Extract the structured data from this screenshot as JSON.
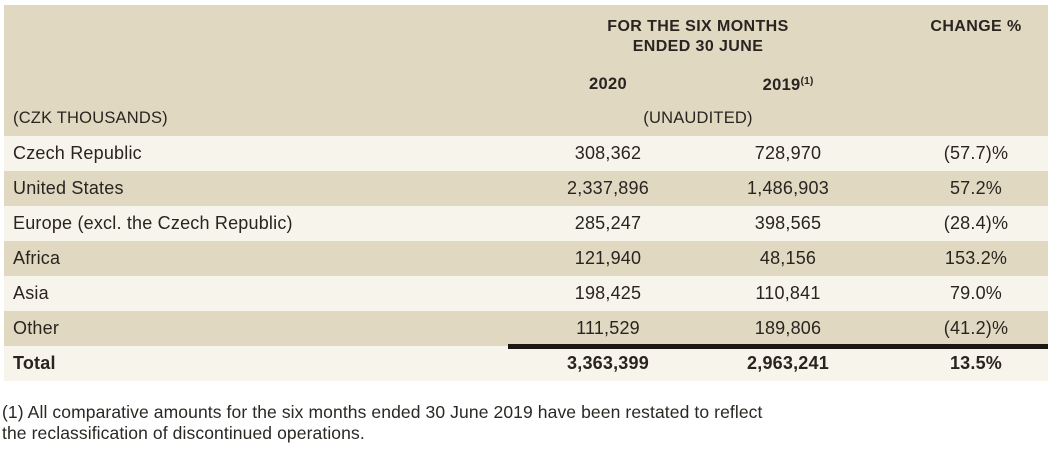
{
  "colors": {
    "band_tan": "#e1d8c2",
    "band_cream": "#f7f4ec",
    "text_dark": "#292420",
    "total_rule_black": "#1b1712",
    "page_background": "#ffffff"
  },
  "table": {
    "period_header": "FOR THE SIX MONTHS\nENDED 30 JUNE",
    "change_header": "CHANGE %",
    "col_2020": "2020",
    "col_2019": {
      "year": "2019",
      "superscript": "(1)"
    },
    "units_label": "(CZK THOUSANDS)",
    "unaudited_label": "(UNAUDITED)",
    "rows": [
      {
        "label": "Czech Republic",
        "v2020": "308,362",
        "v2019": "728,970",
        "change": "(57.7)%"
      },
      {
        "label": "United States",
        "v2020": "2,337,896",
        "v2019": "1,486,903",
        "change": "57.2%"
      },
      {
        "label": "Europe (excl. the Czech Republic)",
        "v2020": "285,247",
        "v2019": "398,565",
        "change": "(28.4)%"
      },
      {
        "label": "Africa",
        "v2020": "121,940",
        "v2019": "48,156",
        "change": "153.2%"
      },
      {
        "label": "Asia",
        "v2020": "198,425",
        "v2019": "110,841",
        "change": "79.0%"
      },
      {
        "label": "Other",
        "v2020": "111,529",
        "v2019": "189,806",
        "change": "(41.2)%"
      }
    ],
    "total_row": {
      "label": "Total",
      "v2020": "3,363,399",
      "v2019": "2,963,241",
      "change": "13.5%"
    }
  },
  "footnote": "(1) All comparative amounts for the six months ended 30 June 2019 have been restated to reflect\nthe reclassification of discontinued operations."
}
